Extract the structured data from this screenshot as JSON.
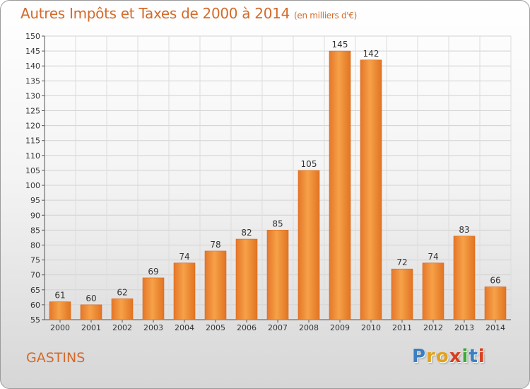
{
  "header": {
    "title": "Autres Impôts et Taxes de 2000 à 2014",
    "unit": "(en milliers d'€)"
  },
  "footer": {
    "place": "GASTINS",
    "logo_letters": [
      "P",
      "r",
      "o",
      "x",
      "i",
      "t",
      "i"
    ],
    "logo_colors": [
      "#3a7fc4",
      "#e2a21e",
      "#e2a21e",
      "#d8401e",
      "#3fa83a",
      "#3a7fc4",
      "#d8401e"
    ]
  },
  "chart_data": {
    "type": "bar",
    "categories": [
      "2000",
      "2001",
      "2002",
      "2003",
      "2004",
      "2005",
      "2006",
      "2007",
      "2008",
      "2009",
      "2010",
      "2011",
      "2012",
      "2013",
      "2014"
    ],
    "values": [
      61,
      60,
      62,
      69,
      74,
      78,
      82,
      85,
      105,
      145,
      142,
      72,
      74,
      83,
      66
    ],
    "ylim": [
      55,
      150
    ],
    "ytick_step": 5,
    "grid": true,
    "data_labels": true,
    "bar_color": "#f08a2c",
    "title": "Autres Impôts et Taxes de 2000 à 2014",
    "xlabel": "",
    "ylabel": ""
  }
}
